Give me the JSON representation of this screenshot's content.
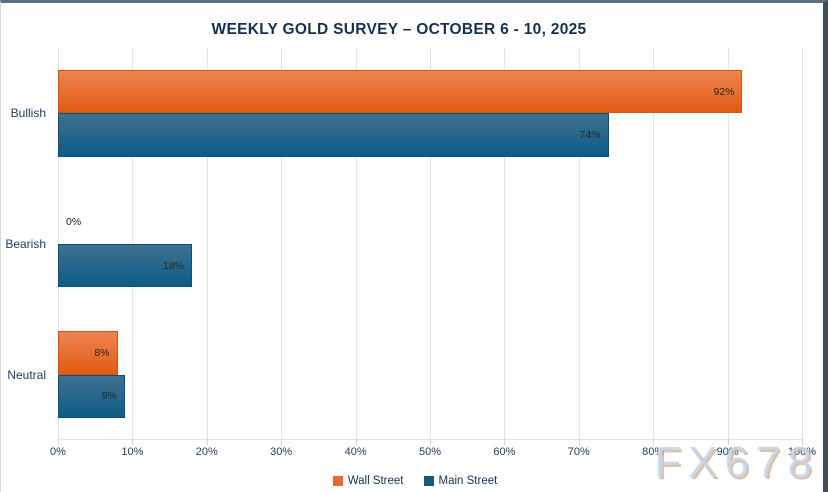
{
  "window": {
    "background": "#ffffff",
    "border_top_color": "#5f6e7e",
    "border_right_color": "#3f4f63",
    "border_left_color": "#d8d8d8"
  },
  "chart_data": {
    "type": "bar",
    "orientation": "horizontal",
    "title": "WEEKLY GOLD SURVEY – OCTOBER 6 - 10, 2025",
    "categories": [
      "Bullish",
      "Bearish",
      "Neutral"
    ],
    "series": [
      {
        "name": "Wall Street",
        "values": [
          92,
          0,
          8
        ],
        "legend_color": "#e8682e",
        "gradient_top": "#ee8450",
        "gradient_bottom": "#e25b13"
      },
      {
        "name": "Main Street",
        "values": [
          74,
          18,
          9
        ],
        "legend_color": "#19587c",
        "gradient_top": "#40708f",
        "gradient_bottom": "#0e5c87"
      }
    ],
    "data_labels": {
      "Wall Street": [
        "92%",
        "0%",
        "8%"
      ],
      "Main Street": [
        "74%",
        "18%",
        "9%"
      ]
    },
    "value_suffix": "%",
    "xlim": [
      0,
      100
    ],
    "x_ticks": [
      "0%",
      "10%",
      "20%",
      "30%",
      "40%",
      "50%",
      "60%",
      "70%",
      "80%",
      "90%",
      "100%"
    ],
    "grid": "vertical",
    "legend_position": "bottom",
    "grid_color": "#d9e6f4",
    "title_color": "#16304f",
    "label_color": "#1e3a5f",
    "value_label_color": "#262626"
  },
  "watermark": {
    "text": "FX678"
  }
}
